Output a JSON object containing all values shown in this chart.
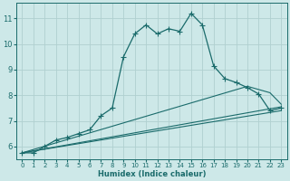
{
  "xlabel": "Humidex (Indice chaleur)",
  "background_color": "#cde8e8",
  "grid_color": "#b0d0d0",
  "line_color": "#1a6b6b",
  "xlim": [
    -0.5,
    23.5
  ],
  "ylim": [
    5.5,
    11.6
  ],
  "xticks": [
    0,
    1,
    2,
    3,
    4,
    5,
    6,
    7,
    8,
    9,
    10,
    11,
    12,
    13,
    14,
    15,
    16,
    17,
    18,
    19,
    20,
    21,
    22,
    23
  ],
  "yticks": [
    6,
    7,
    8,
    9,
    10,
    11
  ],
  "main_x": [
    0,
    1,
    2,
    3,
    4,
    5,
    6,
    7,
    8,
    9,
    10,
    11,
    12,
    13,
    14,
    15,
    16,
    17,
    18,
    19,
    20,
    21,
    22,
    23
  ],
  "main_y": [
    5.75,
    5.75,
    6.0,
    6.25,
    6.35,
    6.5,
    6.65,
    7.2,
    7.5,
    9.5,
    10.4,
    10.75,
    10.4,
    10.6,
    10.5,
    11.2,
    10.75,
    9.15,
    8.65,
    8.5,
    8.3,
    8.05,
    7.4,
    7.5
  ],
  "line1_x": [
    0,
    23
  ],
  "line1_y": [
    5.75,
    7.4
  ],
  "line2_x": [
    0,
    23
  ],
  "line2_y": [
    5.75,
    7.55
  ],
  "line3_x": [
    0,
    20,
    22,
    23
  ],
  "line3_y": [
    5.75,
    8.35,
    8.1,
    7.65
  ]
}
